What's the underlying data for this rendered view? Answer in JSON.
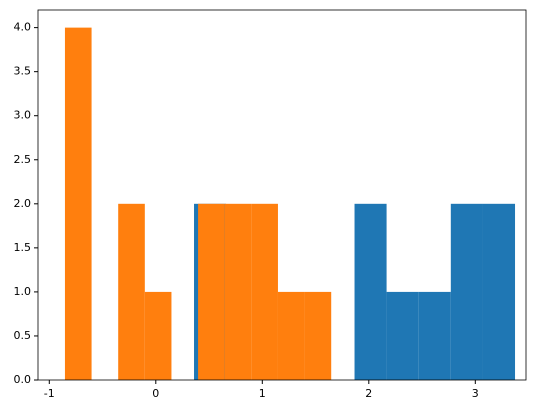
{
  "chart_data": {
    "type": "histogram",
    "series": [
      {
        "color": "#1f77b4",
        "bins": [
          0.359,
          0.66,
          0.962,
          1.263,
          1.565,
          1.866,
          2.167,
          2.469,
          2.77,
          3.072,
          3.373
        ],
        "values": [
          2,
          0,
          0,
          0,
          0,
          2,
          1,
          1,
          2,
          2
        ]
      },
      {
        "color": "#ff7f0e",
        "bins": [
          -0.853,
          -0.603,
          -0.353,
          -0.103,
          0.147,
          0.397,
          0.647,
          0.897,
          1.147,
          1.397,
          1.647
        ],
        "values": [
          4,
          0,
          2,
          1,
          0,
          2,
          2,
          2,
          1,
          1
        ]
      }
    ],
    "xlim": [
      -1.106,
      3.476
    ],
    "xticks": [
      -1,
      0,
      1,
      2,
      3
    ],
    "ylim": [
      0,
      4.2
    ],
    "yticks": [
      {
        "value": 0,
        "label": "0.0"
      },
      {
        "value": 0.5,
        "label": "0.5"
      },
      {
        "value": 1,
        "label": "1.0"
      },
      {
        "value": 1.5,
        "label": "1.5"
      },
      {
        "value": 2,
        "label": "2.0"
      },
      {
        "value": 2.5,
        "label": "2.5"
      },
      {
        "value": 3,
        "label": "3.0"
      },
      {
        "value": 3.5,
        "label": "3.5"
      },
      {
        "value": 4,
        "label": "4.0"
      }
    ]
  }
}
